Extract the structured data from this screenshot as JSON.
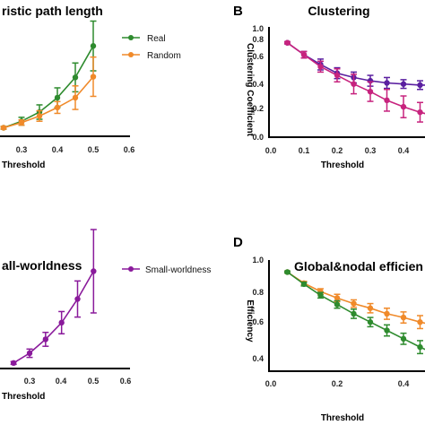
{
  "chart_data": [
    {
      "panel": "",
      "type": "line",
      "title": "ristic path length",
      "xlabel": "Threshold",
      "ylabel": "",
      "xlim": [
        0,
        0.6
      ],
      "ylim": [
        0,
        10
      ],
      "x_ticks": [
        "0.3",
        "0.4",
        "0.5",
        "0.6"
      ],
      "y_ticks": [],
      "legend_position": "top-right",
      "x": [
        0.25,
        0.3,
        0.35,
        0.4,
        0.45,
        0.5
      ],
      "series": [
        {
          "name": "Real",
          "color": "#2e8b2e",
          "values": [
            0.65,
            1.15,
            1.85,
            2.95,
            4.5,
            6.9
          ],
          "errors": [
            0.1,
            0.3,
            0.55,
            0.75,
            1.1,
            1.9
          ]
        },
        {
          "name": "Random",
          "color": "#f08a2a",
          "values": [
            0.65,
            1.05,
            1.55,
            2.2,
            2.95,
            4.55
          ],
          "errors": [
            0.1,
            0.2,
            0.4,
            0.45,
            0.9,
            1.5
          ]
        }
      ]
    },
    {
      "panel": "B",
      "type": "line",
      "title": "Clustering",
      "xlabel": "Threshold",
      "ylabel": "Clustering Coefficient",
      "xlim": [
        0,
        0.5
      ],
      "ylim": [
        0,
        1.0
      ],
      "x_ticks": [
        "0.0",
        "0.1",
        "0.2",
        "0.3",
        "0.4"
      ],
      "y_ticks": [
        "0.0",
        "0.2",
        "0.4",
        "0.6",
        "0.8",
        "1.0"
      ],
      "x": [
        0.05,
        0.1,
        0.15,
        0.2,
        0.25,
        0.3,
        0.35,
        0.4,
        0.45,
        0.5
      ],
      "series": [
        {
          "name": "",
          "color": "#5a1fa0",
          "values": [
            0.87,
            0.76,
            0.67,
            0.59,
            0.55,
            0.52,
            0.5,
            0.49,
            0.48,
            0.48
          ],
          "errors": [
            0.01,
            0.03,
            0.05,
            0.05,
            0.05,
            0.05,
            0.05,
            0.04,
            0.04,
            0.04
          ]
        },
        {
          "name": "",
          "color": "#c7237e",
          "values": [
            0.87,
            0.76,
            0.65,
            0.57,
            0.49,
            0.42,
            0.34,
            0.28,
            0.23,
            0.19
          ],
          "errors": [
            0.01,
            0.03,
            0.05,
            0.06,
            0.09,
            0.09,
            0.1,
            0.1,
            0.09,
            0.08
          ]
        }
      ]
    },
    {
      "panel": "",
      "type": "line",
      "title": "all-worldness",
      "xlabel": "Threshold",
      "ylabel": "",
      "xlim": [
        0,
        0.6
      ],
      "ylim": [
        0,
        10
      ],
      "x_ticks": [
        "0.3",
        "0.4",
        "0.5",
        "0.6"
      ],
      "y_ticks": [],
      "legend_position": "top-right",
      "x": [
        0.25,
        0.3,
        0.35,
        0.4,
        0.45,
        0.5
      ],
      "series": [
        {
          "name": "Small-worldness",
          "color": "#8a1a9b",
          "values": [
            0.4,
            1.1,
            2.1,
            3.3,
            5.0,
            7.0
          ],
          "errors": [
            0.1,
            0.3,
            0.5,
            0.8,
            1.3,
            3.0
          ]
        }
      ]
    },
    {
      "panel": "D",
      "type": "line",
      "title": "Global&nodal efficien",
      "xlabel": "Threshold",
      "ylabel": "Efficiency",
      "xlim": [
        0,
        0.5
      ],
      "ylim": [
        0.4,
        1.0
      ],
      "x_ticks": [
        "0.0",
        "0.2",
        "0.4"
      ],
      "y_ticks": [
        "0.4",
        "0.6",
        "0.8",
        "1.0"
      ],
      "x": [
        0.05,
        0.1,
        0.15,
        0.2,
        0.25,
        0.3,
        0.35,
        0.4,
        0.45,
        0.5
      ],
      "series": [
        {
          "name": "",
          "color": "#f08a2a",
          "values": [
            0.935,
            0.875,
            0.83,
            0.795,
            0.765,
            0.74,
            0.71,
            0.69,
            0.665,
            0.645
          ],
          "errors": [
            0.005,
            0.01,
            0.015,
            0.02,
            0.02,
            0.025,
            0.03,
            0.03,
            0.035,
            0.035
          ]
        },
        {
          "name": "",
          "color": "#2e8b2e",
          "values": [
            0.935,
            0.87,
            0.81,
            0.76,
            0.71,
            0.665,
            0.62,
            0.575,
            0.53,
            0.49
          ],
          "errors": [
            0.005,
            0.01,
            0.015,
            0.02,
            0.025,
            0.025,
            0.03,
            0.03,
            0.035,
            0.035
          ]
        }
      ]
    }
  ]
}
